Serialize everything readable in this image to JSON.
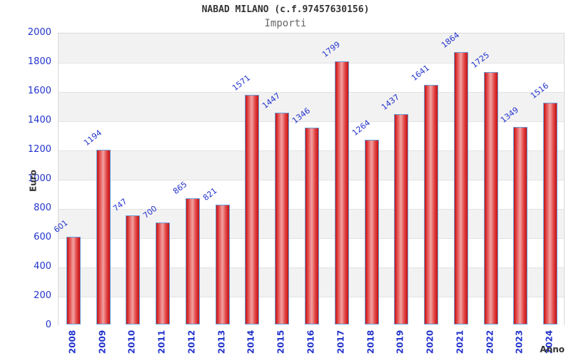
{
  "header": {
    "title": "NABAD MILANO (c.f.97457630156)",
    "subtitle": "Importi"
  },
  "chart_data": {
    "type": "bar",
    "title": "NABAD MILANO (c.f.97457630156)",
    "subtitle": "Importi",
    "xlabel": "Anno",
    "ylabel": "Euro",
    "categories": [
      "2008",
      "2009",
      "2010",
      "2011",
      "2012",
      "2013",
      "2014",
      "2015",
      "2016",
      "2017",
      "2018",
      "2019",
      "2020",
      "2021",
      "2022",
      "2023",
      "2024"
    ],
    "values": [
      601,
      1194,
      747,
      700,
      865,
      821,
      1571,
      1447,
      1346,
      1799,
      1264,
      1437,
      1641,
      1864,
      1725,
      1349,
      1516
    ],
    "ylim": [
      0,
      2000
    ],
    "ytick_step": 200,
    "legend": "none",
    "grid": "horizontal-alternating-bands",
    "colors": {
      "bar_edge": "#c41212",
      "bar_highlight": "#f2a2a2",
      "bar_border": "#6b9fd8",
      "value_label": "#2233cc",
      "tick_label": "#2233cc",
      "axis_title": "#333333",
      "title": "#333333",
      "subtitle": "#666666",
      "band_gray": "#f2f2f2",
      "gridline": "#e2e2e2"
    }
  }
}
